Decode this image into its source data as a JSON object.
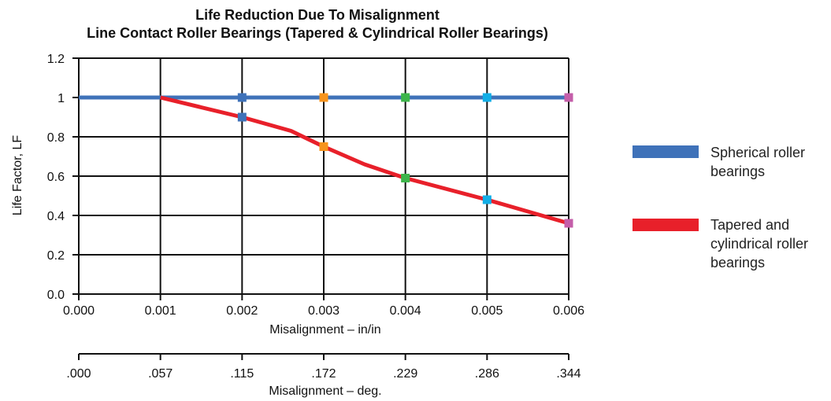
{
  "chart_data": {
    "type": "line",
    "title": "Life Reduction Due To Misalignment",
    "subtitle": "Line Contact Roller Bearings (Tapered & Cylindrical Roller Bearings)",
    "ylabel": "Life Factor, LF",
    "xlabel": "Misalignment – in/in",
    "xlabel_secondary": "Misalignment – deg.",
    "ylim": [
      0,
      1.2
    ],
    "xlim": [
      0,
      0.006
    ],
    "grid": true,
    "legend_position": "right",
    "y_ticks": [
      "0.0",
      "0.2",
      "0.4",
      "0.6",
      "0.8",
      "1",
      "1.2"
    ],
    "x_ticks": [
      "0.000",
      "0.001",
      "0.002",
      "0.003",
      "0.004",
      "0.005",
      "0.006"
    ],
    "x_ticks_secondary": [
      ".000",
      ".057",
      ".115",
      ".172",
      ".229",
      ".286",
      ".344"
    ],
    "series": [
      {
        "name": "Spherical roller bearings",
        "color": "#3f72b9",
        "x": [
          0.0,
          0.001,
          0.002,
          0.003,
          0.004,
          0.005,
          0.006
        ],
        "y": [
          1.0,
          1.0,
          1.0,
          1.0,
          1.0,
          1.0,
          1.0
        ],
        "marker_x": [
          0.002,
          0.003,
          0.004,
          0.005,
          0.006
        ],
        "marker_y": [
          1.0,
          1.0,
          1.0,
          1.0,
          1.0
        ]
      },
      {
        "name": "Tapered and cylindrical roller bearings",
        "color": "#e8202a",
        "x": [
          0.001,
          0.002,
          0.0026,
          0.003,
          0.0035,
          0.004,
          0.005,
          0.006
        ],
        "y": [
          1.0,
          0.9,
          0.83,
          0.75,
          0.66,
          0.59,
          0.48,
          0.36
        ],
        "marker_x": [
          0.002,
          0.003,
          0.004,
          0.005,
          0.006
        ],
        "marker_y": [
          0.9,
          0.75,
          0.59,
          0.48,
          0.36
        ]
      }
    ],
    "marker_colors": [
      "#3f72b9",
      "#f7941d",
      "#3db54a",
      "#12aee7",
      "#c45ea9"
    ],
    "legend": {
      "spherical": [
        "Spherical roller",
        "bearings"
      ],
      "tapered": [
        "Tapered and",
        "cylindrical roller",
        "bearings"
      ]
    }
  }
}
